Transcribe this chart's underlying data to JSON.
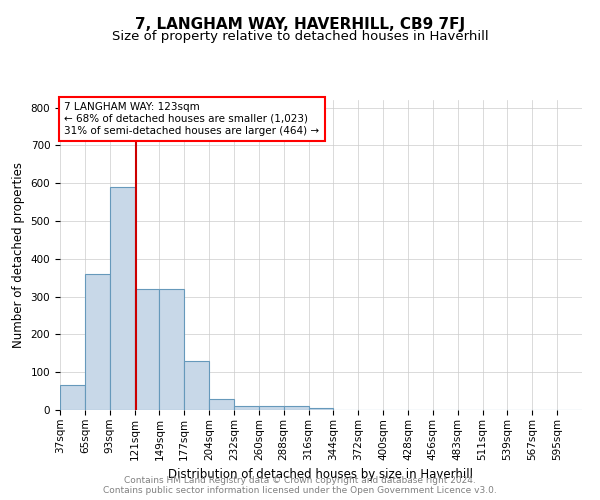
{
  "title": "7, LANGHAM WAY, HAVERHILL, CB9 7FJ",
  "subtitle": "Size of property relative to detached houses in Haverhill",
  "xlabel": "Distribution of detached houses by size in Haverhill",
  "ylabel": "Number of detached properties",
  "footnote1": "Contains HM Land Registry data © Crown copyright and database right 2024.",
  "footnote2": "Contains public sector information licensed under the Open Government Licence v3.0.",
  "bar_labels": [
    "37sqm",
    "65sqm",
    "93sqm",
    "121sqm",
    "149sqm",
    "177sqm",
    "204sqm",
    "232sqm",
    "260sqm",
    "288sqm",
    "316sqm",
    "344sqm",
    "372sqm",
    "400sqm",
    "428sqm",
    "456sqm",
    "483sqm",
    "511sqm",
    "539sqm",
    "567sqm",
    "595sqm"
  ],
  "bar_heights": [
    65,
    360,
    590,
    320,
    320,
    130,
    28,
    10,
    10,
    10,
    5,
    0,
    0,
    0,
    0,
    0,
    0,
    0,
    0,
    0,
    0
  ],
  "bar_color": "#c8d8e8",
  "bar_edgecolor": "#6699bb",
  "bar_linewidth": 0.8,
  "red_line_color": "#cc0000",
  "annotation_line1": "7 LANGHAM WAY: 123sqm",
  "annotation_line2": "← 68% of detached houses are smaller (1,023)",
  "annotation_line3": "31% of semi-detached houses are larger (464) →",
  "ylim": [
    0,
    820
  ],
  "yticks": [
    0,
    100,
    200,
    300,
    400,
    500,
    600,
    700,
    800
  ],
  "background_color": "#ffffff",
  "grid_color": "#cccccc",
  "title_fontsize": 11,
  "subtitle_fontsize": 9.5,
  "axis_label_fontsize": 8.5,
  "tick_fontsize": 7.5,
  "annotation_fontsize": 7.5,
  "footnote_fontsize": 6.5
}
